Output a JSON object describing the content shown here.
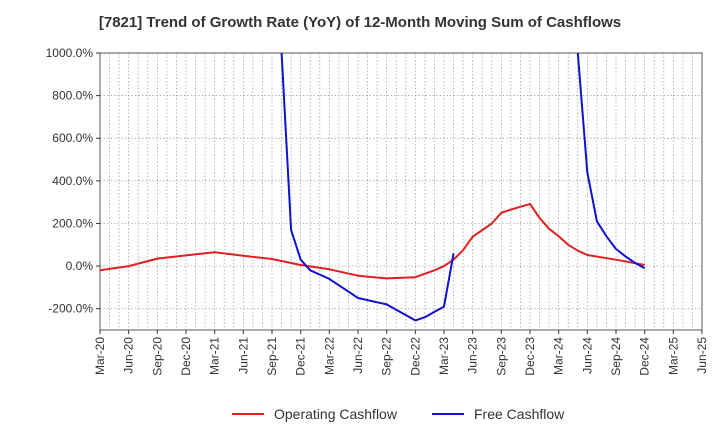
{
  "title": "[7821]  Trend of Growth Rate (YoY) of 12-Month Moving Sum of Cashflows",
  "chart_data": {
    "type": "line",
    "title": "[7821]  Trend of Growth Rate (YoY) of 12-Month Moving Sum of Cashflows",
    "ylim": [
      -300,
      1000
    ],
    "xlim": [
      "2020-03",
      "2025-06"
    ],
    "grid": true,
    "legend_position": "bottom",
    "y_ticks": [
      -200,
      0,
      200,
      400,
      600,
      800,
      1000
    ],
    "y_tick_labels": [
      "-200.0%",
      "0.0%",
      "200.0%",
      "400.0%",
      "600.0%",
      "800.0%",
      "1000.0%"
    ],
    "x_tick_labels": [
      "Mar-20",
      "Jun-20",
      "Sep-20",
      "Dec-20",
      "Mar-21",
      "Jun-21",
      "Sep-21",
      "Dec-21",
      "Mar-22",
      "Jun-22",
      "Sep-22",
      "Dec-22",
      "Mar-23",
      "Jun-23",
      "Sep-23",
      "Dec-23",
      "Mar-24",
      "Jun-24",
      "Sep-24",
      "Dec-24",
      "Mar-25",
      "Jun-25"
    ],
    "series": [
      {
        "name": "Operating Cashflow",
        "color": "#e02020",
        "points": [
          [
            "2020-03",
            -20
          ],
          [
            "2020-06",
            0
          ],
          [
            "2020-09",
            35
          ],
          [
            "2020-12",
            50
          ],
          [
            "2021-03",
            65
          ],
          [
            "2021-06",
            48
          ],
          [
            "2021-09",
            33
          ],
          [
            "2021-12",
            5
          ],
          [
            "2022-03",
            -15
          ],
          [
            "2022-06",
            -45
          ],
          [
            "2022-09",
            -58
          ],
          [
            "2022-12",
            -52
          ],
          [
            "2023-02",
            -20
          ],
          [
            "2023-03",
            0
          ],
          [
            "2023-04",
            30
          ],
          [
            "2023-05",
            75
          ],
          [
            "2023-06",
            138
          ],
          [
            "2023-08",
            200
          ],
          [
            "2023-09",
            250
          ],
          [
            "2023-10",
            265
          ],
          [
            "2023-12",
            292
          ],
          [
            "2024-01",
            225
          ],
          [
            "2024-02",
            175
          ],
          [
            "2024-03",
            140
          ],
          [
            "2024-04",
            100
          ],
          [
            "2024-05",
            72
          ],
          [
            "2024-06",
            52
          ],
          [
            "2024-09",
            30
          ],
          [
            "2024-12",
            5
          ]
        ]
      },
      {
        "name": "Free Cashflow",
        "color": "#1010d0",
        "segments": [
          [
            [
              "2021-10",
              1000
            ],
            [
              "2021-11",
              170
            ],
            [
              "2021-12",
              30
            ],
            [
              "2022-01",
              -20
            ],
            [
              "2022-03",
              -60
            ],
            [
              "2022-05",
              -120
            ],
            [
              "2022-06",
              -150
            ],
            [
              "2022-09",
              -180
            ],
            [
              "2022-10",
              -205
            ],
            [
              "2022-12",
              -255
            ],
            [
              "2023-01",
              -240
            ],
            [
              "2023-02",
              -215
            ],
            [
              "2023-03",
              -190
            ],
            [
              "2023-04",
              60
            ]
          ],
          [
            [
              "2024-05",
              1000
            ],
            [
              "2024-06",
              440
            ],
            [
              "2024-07",
              210
            ],
            [
              "2024-08",
              140
            ],
            [
              "2024-09",
              80
            ],
            [
              "2024-10",
              45
            ],
            [
              "2024-11",
              15
            ],
            [
              "2024-12",
              -10
            ]
          ]
        ]
      }
    ]
  }
}
